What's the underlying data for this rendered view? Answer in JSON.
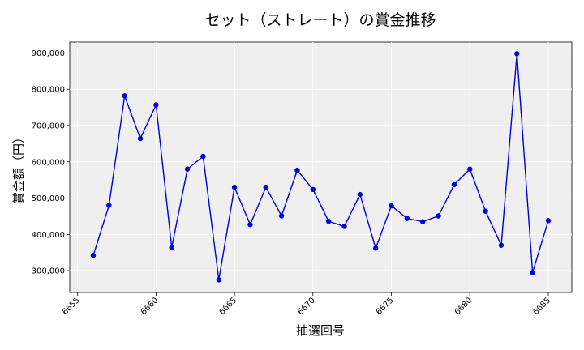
{
  "chart_data": {
    "type": "line",
    "title": "セット（ストレート）の賞金推移",
    "xlabel": "抽選回号",
    "ylabel": "賞金額（円）",
    "xlim": [
      6654.5,
      6686.5
    ],
    "ylim": [
      240000,
      930000
    ],
    "x_ticks": [
      6655,
      6660,
      6665,
      6670,
      6675,
      6680,
      6685
    ],
    "y_ticks": [
      300000,
      400000,
      500000,
      600000,
      700000,
      800000,
      900000
    ],
    "y_tick_labels": [
      "300,000",
      "400,000",
      "500,000",
      "600,000",
      "700,000",
      "800,000",
      "900,000"
    ],
    "grid": true,
    "series": [
      {
        "color": "#0000dd",
        "x": [
          6656,
          6657,
          6658,
          6659,
          6660,
          6661,
          6662,
          6663,
          6664,
          6665,
          6666,
          6667,
          6668,
          6669,
          6670,
          6671,
          6672,
          6673,
          6674,
          6675,
          6676,
          6677,
          6678,
          6679,
          6680,
          6681,
          6682,
          6683,
          6684,
          6685
        ],
        "values": [
          342000,
          480000,
          782000,
          664000,
          757000,
          364000,
          580000,
          615000,
          275000,
          530000,
          427000,
          530000,
          451000,
          577000,
          524000,
          436000,
          422000,
          510000,
          362000,
          479000,
          444000,
          435000,
          451000,
          537000,
          580000,
          464000,
          370000,
          898000,
          295000,
          438000
        ]
      }
    ]
  }
}
